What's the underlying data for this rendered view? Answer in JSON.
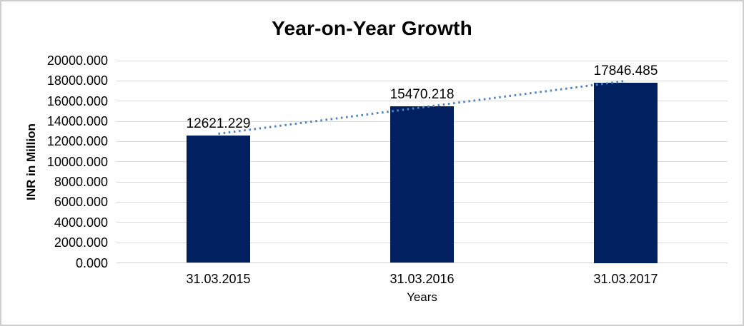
{
  "chart_data": {
    "type": "bar",
    "title": "Year-on-Year Growth",
    "categories": [
      "31.03.2015",
      "31.03.2016",
      "31.03.2017"
    ],
    "series": [
      {
        "name": "INR in Million",
        "values": [
          12621.229,
          15470.218,
          17846.485
        ]
      }
    ],
    "data_labels": [
      "12621.229",
      "15470.218",
      "17846.485"
    ],
    "xlabel": "Years",
    "ylabel": "INR in Million",
    "ylim": [
      0,
      20000
    ],
    "ytick_step": 2000,
    "ytick_labels": [
      "0.000",
      "2000.000",
      "4000.000",
      "6000.000",
      "8000.000",
      "10000.000",
      "12000.000",
      "14000.000",
      "16000.000",
      "18000.000",
      "20000.000"
    ],
    "grid": true,
    "legend": "none",
    "bar_color": "#002060",
    "gridline_color": "#d9d9d9",
    "trendline": {
      "type": "linear",
      "style": "dotted",
      "color": "#4f86c6"
    }
  }
}
